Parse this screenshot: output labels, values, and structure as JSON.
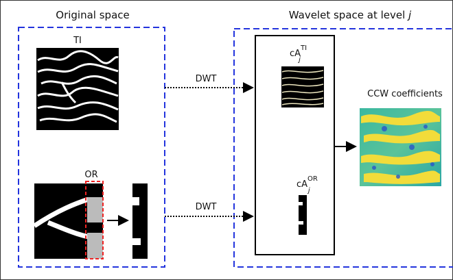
{
  "original_space": {
    "title": "Original space",
    "ti_label": "TI",
    "or_label": "OR"
  },
  "wavelet_space": {
    "title": "Wavelet space at level",
    "title_level": "j",
    "ca_ti": {
      "base": "cA",
      "sup": "TI",
      "sub": "j"
    },
    "ca_or": {
      "base": "cA",
      "sup": "OR",
      "sub": "j"
    },
    "ccw_label": "CCW coefficients"
  },
  "arrows": [
    "DWT",
    "DWT"
  ]
}
